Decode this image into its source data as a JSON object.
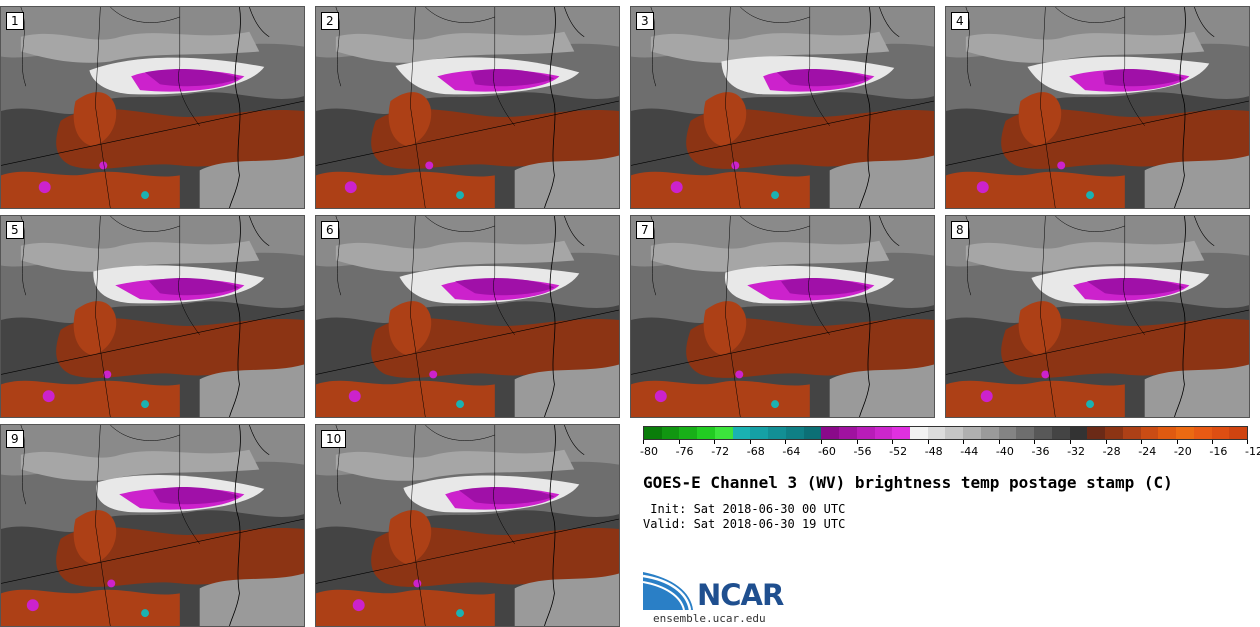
{
  "panels": [
    {
      "label": "1"
    },
    {
      "label": "2"
    },
    {
      "label": "3"
    },
    {
      "label": "4"
    },
    {
      "label": "5"
    },
    {
      "label": "6"
    },
    {
      "label": "7"
    },
    {
      "label": "8"
    },
    {
      "label": "9"
    },
    {
      "label": "10"
    }
  ],
  "colorbar": {
    "colors": [
      "#0a7d0a",
      "#119611",
      "#18b018",
      "#22cc22",
      "#3ce43c",
      "#1ab2b2",
      "#15a0a5",
      "#128f95",
      "#0f7f85",
      "#0c6f75",
      "#8a0a8a",
      "#a012a0",
      "#b81cb8",
      "#cc26cc",
      "#e030e0",
      "#f2f2f2",
      "#dcdcdc",
      "#c6c6c6",
      "#b0b0b0",
      "#9a9a9a",
      "#848484",
      "#6e6e6e",
      "#585858",
      "#444444",
      "#333333",
      "#6b2a17",
      "#8c3414",
      "#ad4016",
      "#ca4c14",
      "#e05a10",
      "#ec6a12",
      "#e85a14",
      "#de4e12",
      "#d04410"
    ],
    "ticks": [
      "-80",
      "-76",
      "-72",
      "-68",
      "-64",
      "-60",
      "-56",
      "-52",
      "-48",
      "-44",
      "-40",
      "-36",
      "-32",
      "-28",
      "-24",
      "-20",
      "-16",
      "-12"
    ],
    "min": -80,
    "max": -12
  },
  "title": "GOES-E Channel 3 (WV) brightness temp postage stamp (C)",
  "init_line": " Init: Sat 2018-06-30 00 UTC",
  "valid_line": "Valid: Sat 2018-06-30 19 UTC",
  "logo": {
    "text": "NCAR",
    "url": "ensemble.ucar.edu",
    "color": "#1f4f8f",
    "swoosh_color": "#2a7fc6"
  }
}
